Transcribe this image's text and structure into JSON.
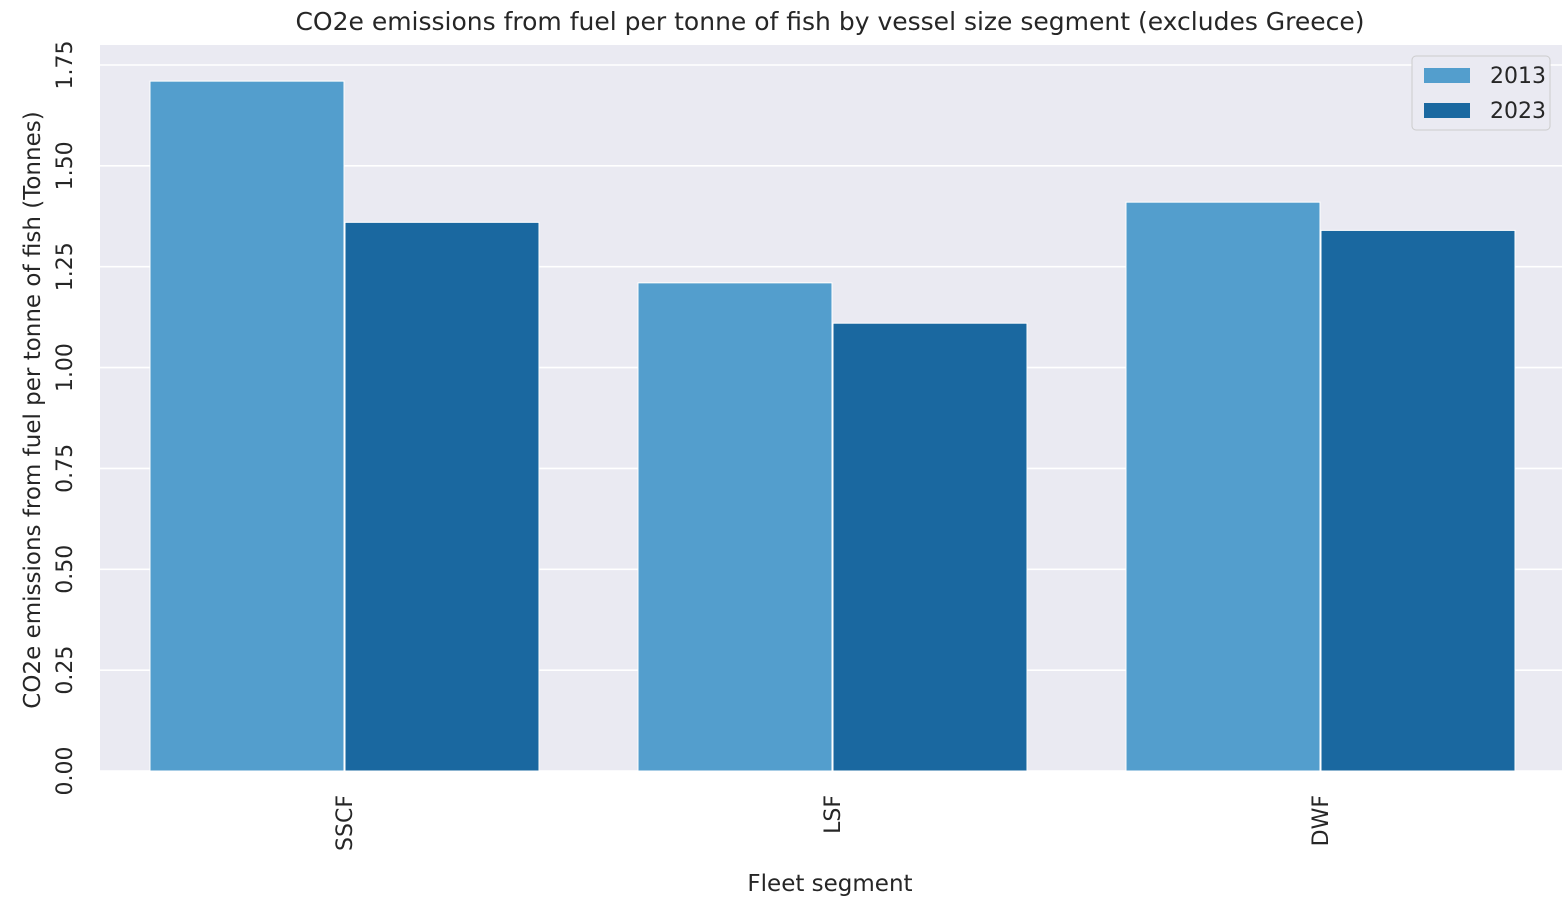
{
  "chart_data": {
    "type": "bar",
    "title": "CO2e emissions from fuel per tonne of fish by vessel size segment (excludes Greece)",
    "xlabel": "Fleet segment",
    "ylabel": "CO2e emissions from fuel per tonne of fish (Tonnes)",
    "categories": [
      "SSCF",
      "LSF",
      "DWF"
    ],
    "series": [
      {
        "name": "2013",
        "values": [
          1.71,
          1.21,
          1.41
        ],
        "color": "#539ecd"
      },
      {
        "name": "2023",
        "values": [
          1.36,
          1.11,
          1.34
        ],
        "color": "#1a68a0"
      }
    ],
    "ylim": [
      0,
      1.75
    ],
    "yticks": [
      "0.00",
      "0.25",
      "0.50",
      "0.75",
      "1.00",
      "1.25",
      "1.50",
      "1.75"
    ],
    "grid": true,
    "legend_position": "top-right",
    "plot_background": "#eaeaf2",
    "grid_color": "#ffffff"
  }
}
